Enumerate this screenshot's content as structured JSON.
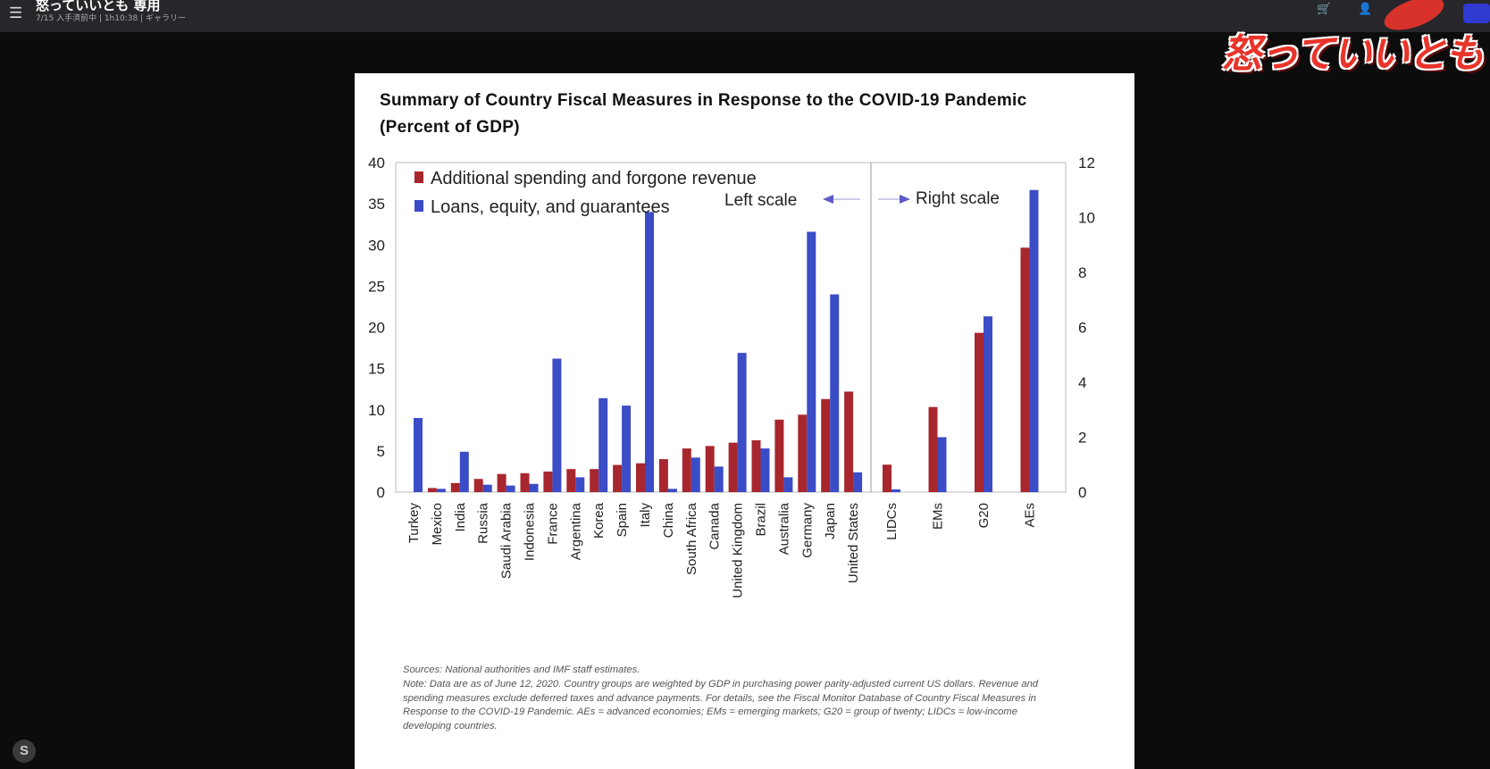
{
  "app": {
    "title": "怒っていいとも 専用",
    "subtitle": "7/15 入手済前中 | 1h10:38 | ギャラリー",
    "logo_text": "怒っていいとも",
    "badge": "S"
  },
  "colors": {
    "spending": "#a8262d",
    "loans": "#3b4cc7",
    "background": "#0c0c0c",
    "slide": "#ffffff"
  },
  "chart_data": {
    "type": "bar",
    "title_line1": "Summary of Country Fiscal Measures in Response to the COVID-19 Pandemic",
    "title_line2": "(Percent of GDP)",
    "left_axis": {
      "ylim": [
        0,
        40
      ],
      "ticks": [
        "0",
        "5",
        "10",
        "15",
        "20",
        "25",
        "30",
        "35",
        "40"
      ]
    },
    "right_axis": {
      "ylim": [
        0,
        12
      ],
      "ticks": [
        "0",
        "2",
        "4",
        "6",
        "8",
        "10",
        "12"
      ]
    },
    "legend": [
      {
        "name": "Additional spending and forgone revenue",
        "color": "#a8262d"
      },
      {
        "name": "Loans, equity, and guarantees",
        "color": "#3b4cc7"
      }
    ],
    "scale_labels": {
      "left": "Left scale",
      "right": "Right scale"
    },
    "left_group": {
      "categories": [
        "Turkey",
        "Mexico",
        "India",
        "Russia",
        "Saudi Arabia",
        "Indonesia",
        "France",
        "Argentina",
        "Korea",
        "Spain",
        "Italy",
        "China",
        "South Africa",
        "Canada",
        "United Kingdom",
        "Brazil",
        "Australia",
        "Germany",
        "Japan",
        "United States"
      ],
      "series": [
        {
          "name": "Additional spending and forgone revenue",
          "values": [
            0,
            0.5,
            1.1,
            1.6,
            2.2,
            2.3,
            2.5,
            2.8,
            2.8,
            3.3,
            3.5,
            4.0,
            5.3,
            5.6,
            6.0,
            6.3,
            8.8,
            9.4,
            11.3,
            12.2
          ]
        },
        {
          "name": "Loans, equity, and guarantees",
          "values": [
            9.0,
            0.4,
            4.9,
            0.9,
            0.8,
            1.0,
            16.2,
            1.8,
            11.4,
            10.5,
            34.0,
            0.4,
            4.2,
            3.1,
            16.9,
            5.3,
            1.8,
            31.6,
            24.0,
            2.4
          ]
        }
      ]
    },
    "right_group": {
      "categories": [
        "LIDCs",
        "EMs",
        "G20",
        "AEs"
      ],
      "series": [
        {
          "name": "Additional spending and forgone revenue",
          "values": [
            1.0,
            3.1,
            5.8,
            8.9
          ]
        },
        {
          "name": "Loans, equity, and guarantees",
          "values": [
            0.1,
            2.0,
            6.4,
            11.0
          ]
        }
      ]
    },
    "source": "Sources: National authorities and IMF staff estimates.",
    "note": "Note: Data are as of June 12, 2020. Country groups are weighted by GDP in purchasing power parity-adjusted current US dollars. Revenue and spending measures exclude deferred taxes and advance payments. For details, see the Fiscal Monitor Database of Country Fiscal Measures in Response to the COVID-19 Pandemic. AEs = advanced economies; EMs = emerging markets; G20 = group of twenty; LIDCs = low-income developing countries."
  }
}
